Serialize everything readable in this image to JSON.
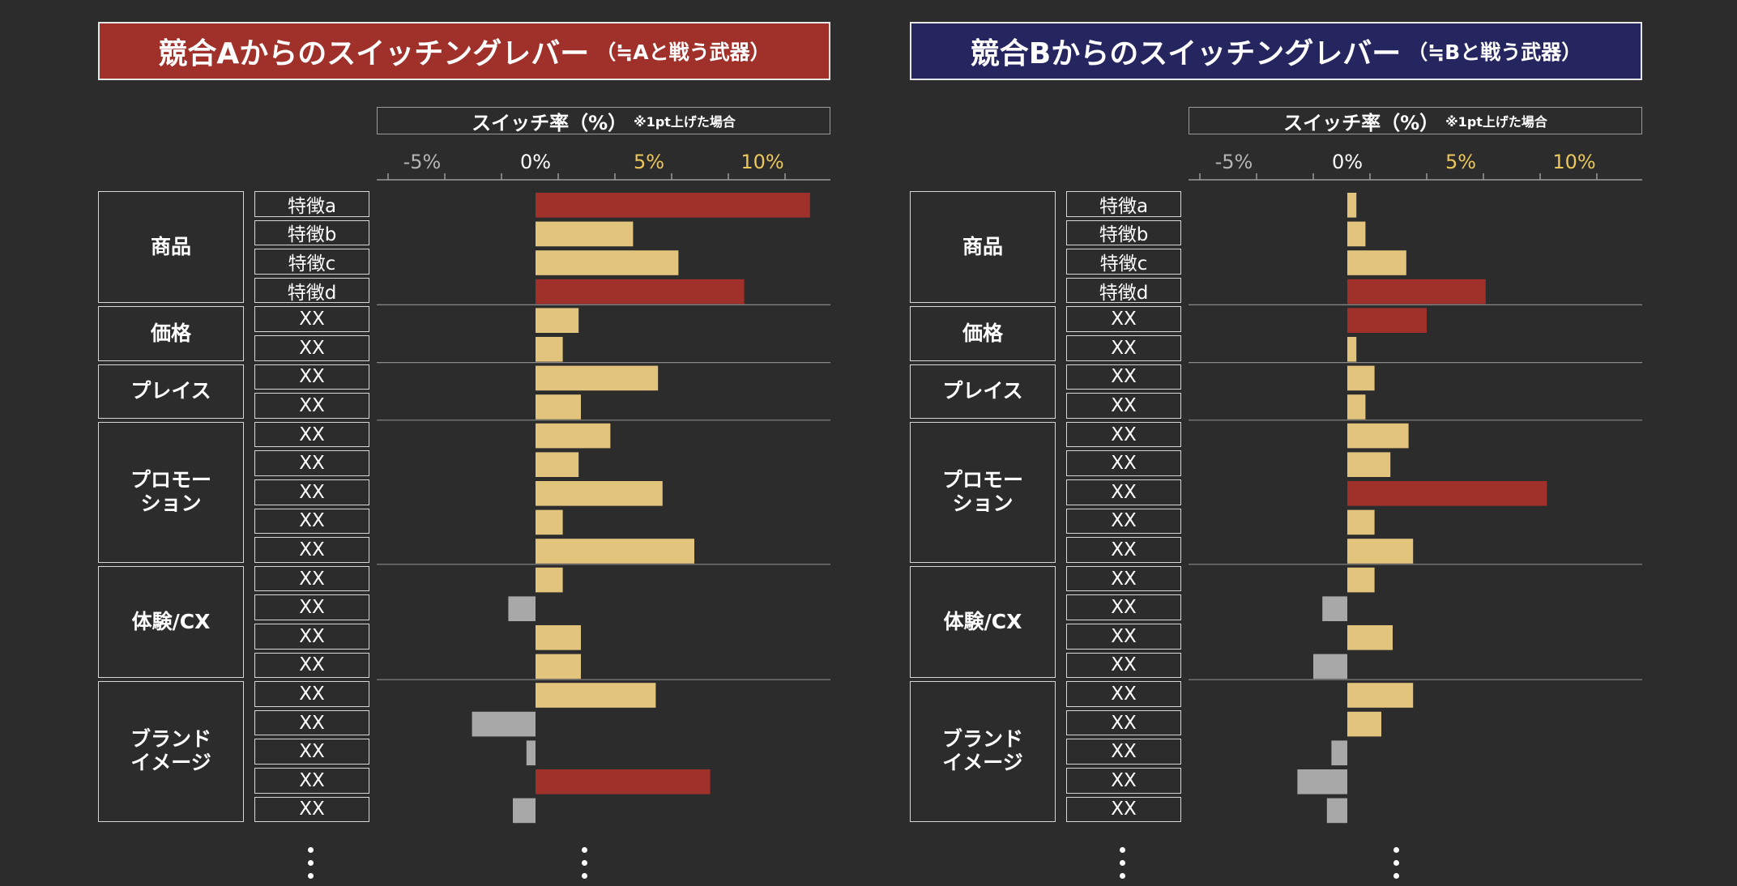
{
  "colors": {
    "background": "#2c2c2c",
    "highlight": "#a0302a",
    "positive": "#e3c47d",
    "negative": "#a8a8a8",
    "header_a": "#a0302a",
    "header_b": "#252660",
    "tick_gray": "#b5b5b5",
    "tick_zero": "#ffffff",
    "tick_yellow": "#ecc75a"
  },
  "panels": [
    {
      "title_main": "競合Aからのスイッチングレバー",
      "title_sub": "（≒Aと戦う武器）",
      "header_color": "#a0302a",
      "axis_title": "スイッチ率（%）",
      "axis_note": "※1pt上げた場合"
    },
    {
      "title_main": "競合Bからのスイッチングレバー",
      "title_sub": "（≒Bと戦う武器）",
      "header_color": "#252660",
      "axis_title": "スイッチ率（%）",
      "axis_note": "※1pt上げた場合"
    }
  ],
  "groups": [
    {
      "label": "商品",
      "count": 4
    },
    {
      "label": "価格",
      "count": 2
    },
    {
      "label": "プレイス",
      "count": 2
    },
    {
      "label": "プロモー\nション",
      "count": 5
    },
    {
      "label": "体験/CX",
      "count": 4
    },
    {
      "label": "ブランド\nイメージ",
      "count": 5
    }
  ],
  "chart_data": [
    {
      "type": "bar",
      "orientation": "horizontal",
      "title": "競合Aからのスイッチングレバー（≒Aと戦う武器）",
      "xlabel": "スイッチ率（%）※1pt上げた場合",
      "xlim": [
        -7,
        13
      ],
      "xticks": [
        {
          "value": -5,
          "label": "-5%"
        },
        {
          "value": 0,
          "label": "0%"
        },
        {
          "value": 5,
          "label": "5%"
        },
        {
          "value": 10,
          "label": "10%"
        }
      ],
      "categories": [
        "特徴a",
        "特徴b",
        "特徴c",
        "特徴d",
        "XX",
        "XX",
        "XX",
        "XX",
        "XX",
        "XX",
        "XX",
        "XX",
        "XX",
        "XX",
        "XX",
        "XX",
        "XX",
        "XX",
        "XX",
        "XX",
        "XX",
        "XX"
      ],
      "values": [
        12.1,
        4.3,
        6.3,
        9.2,
        1.9,
        1.2,
        5.4,
        2.0,
        3.3,
        1.9,
        5.6,
        1.2,
        7.0,
        1.2,
        -1.2,
        2.0,
        2.0,
        5.3,
        -2.8,
        -0.4,
        7.7,
        -1.0
      ],
      "highlight": [
        true,
        false,
        false,
        true,
        false,
        false,
        false,
        false,
        false,
        false,
        false,
        false,
        false,
        false,
        false,
        false,
        false,
        false,
        false,
        false,
        true,
        false
      ]
    },
    {
      "type": "bar",
      "orientation": "horizontal",
      "title": "競合Bからのスイッチングレバー（≒Bと戦う武器）",
      "xlabel": "スイッチ率（%）※1pt上げた場合",
      "xlim": [
        -7,
        13
      ],
      "xticks": [
        {
          "value": -5,
          "label": "-5%"
        },
        {
          "value": 0,
          "label": "0%"
        },
        {
          "value": 5,
          "label": "5%"
        },
        {
          "value": 10,
          "label": "10%"
        }
      ],
      "categories": [
        "特徴a",
        "特徴b",
        "特徴c",
        "特徴d",
        "XX",
        "XX",
        "XX",
        "XX",
        "XX",
        "XX",
        "XX",
        "XX",
        "XX",
        "XX",
        "XX",
        "XX",
        "XX",
        "XX",
        "XX",
        "XX",
        "XX",
        "XX"
      ],
      "values": [
        0.4,
        0.8,
        2.6,
        6.1,
        3.5,
        0.4,
        1.2,
        0.8,
        2.7,
        1.9,
        8.8,
        1.2,
        2.9,
        1.2,
        -1.1,
        2.0,
        -1.5,
        2.9,
        1.5,
        -0.7,
        -2.2,
        -0.9
      ],
      "highlight": [
        false,
        false,
        false,
        true,
        true,
        false,
        false,
        false,
        false,
        false,
        true,
        false,
        false,
        false,
        false,
        false,
        false,
        false,
        false,
        false,
        false,
        false
      ]
    }
  ]
}
